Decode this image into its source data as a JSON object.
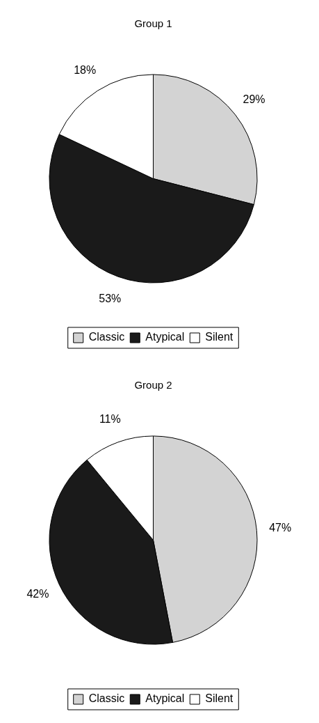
{
  "chart_data": [
    {
      "type": "pie",
      "title": "Group 1",
      "categories": [
        "Classic",
        "Atypical",
        "Silent"
      ],
      "values": [
        29,
        53,
        18
      ],
      "colors": [
        "#d3d3d3",
        "#1a1a1a",
        "#ffffff"
      ],
      "value_labels": [
        "29%",
        "53%",
        "18%"
      ],
      "legend": "bottom"
    },
    {
      "type": "pie",
      "title": "Group 2",
      "categories": [
        "Classic",
        "Atypical",
        "Silent"
      ],
      "values": [
        47,
        42,
        11
      ],
      "colors": [
        "#d3d3d3",
        "#1a1a1a",
        "#ffffff"
      ],
      "value_labels": [
        "47%",
        "42%",
        "11%"
      ],
      "legend": "bottom"
    }
  ]
}
